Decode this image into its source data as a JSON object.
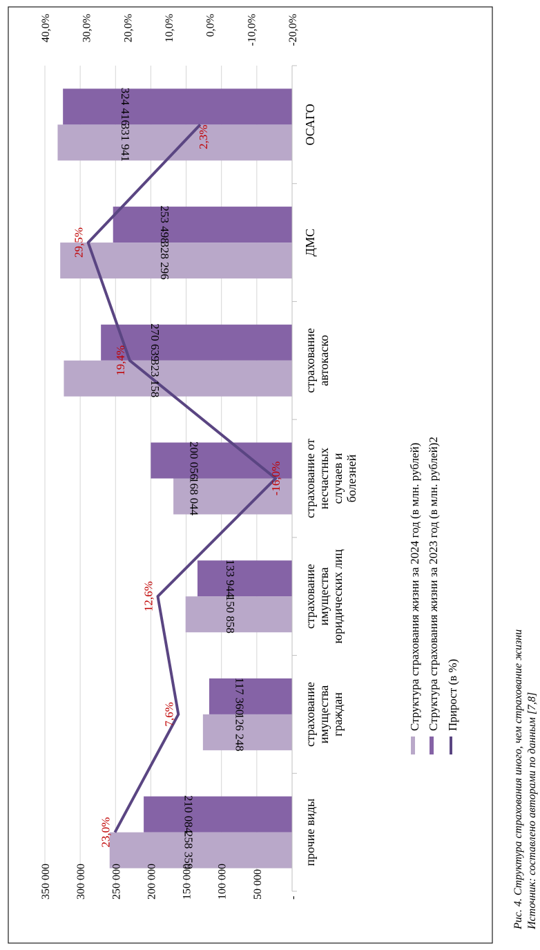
{
  "chart_data": {
    "type": "bar",
    "orientation": "rotated-90",
    "categories": [
      [
        "ОСАГО"
      ],
      [
        "ДМС"
      ],
      [
        "страхование",
        "автокаско"
      ],
      [
        "страхование от",
        "несчастных",
        "случаев и",
        "болезней"
      ],
      [
        "страхование",
        "имущества",
        "юридических лиц"
      ],
      [
        "страхование",
        "имущества",
        "граждан"
      ],
      [
        "прочие виды"
      ]
    ],
    "series": [
      {
        "name": "Структура страхования жизни за 2024 год (в млн. рублей)",
        "values": [
          331941,
          328296,
          323158,
          168044,
          150858,
          126248,
          258359
        ],
        "labels": [
          "331 941",
          "328 296",
          "323 158",
          "168 044",
          "150 858",
          "126 248",
          "258 359"
        ],
        "color": "#b9a8c9"
      },
      {
        "name": "Структура страхования жизни за 2023 год (в млн. рублей)2",
        "values": [
          324416,
          253498,
          270639,
          200056,
          133944,
          117360,
          210084
        ],
        "labels": [
          "324 416",
          "253 498",
          "270 639",
          "200 056",
          "133 944",
          "117 360",
          "210 084"
        ],
        "color": "#8563a6"
      }
    ],
    "line": {
      "name": "Прирост (в %)",
      "values": [
        2.3,
        29.5,
        19.4,
        -16.0,
        12.6,
        7.6,
        23.0
      ],
      "labels": [
        "2,3%",
        "29,5%",
        "19,4%",
        "-16,0%",
        "12,6%",
        "7,6%",
        "23,0%"
      ],
      "color": "#5a4582",
      "label_color": "#c00000"
    },
    "primary_axis": {
      "min": 0,
      "max": 350000,
      "ticks": [
        "-",
        "50 000",
        "100 000",
        "150 000",
        "200 000",
        "250 000",
        "300 000",
        "350 000"
      ]
    },
    "secondary_axis": {
      "min": -20,
      "max": 40,
      "ticks": [
        "-20,0%",
        "-10,0%",
        "0,0%",
        "10,0%",
        "20,0%",
        "30,0%",
        "40,0%"
      ]
    },
    "legend_position": "below-plot"
  },
  "caption": {
    "line1": "Рис. 4. Структура страхования иного, чем страхование жизни",
    "line2": "Источник: составлено авторами по данным [7,8]"
  }
}
